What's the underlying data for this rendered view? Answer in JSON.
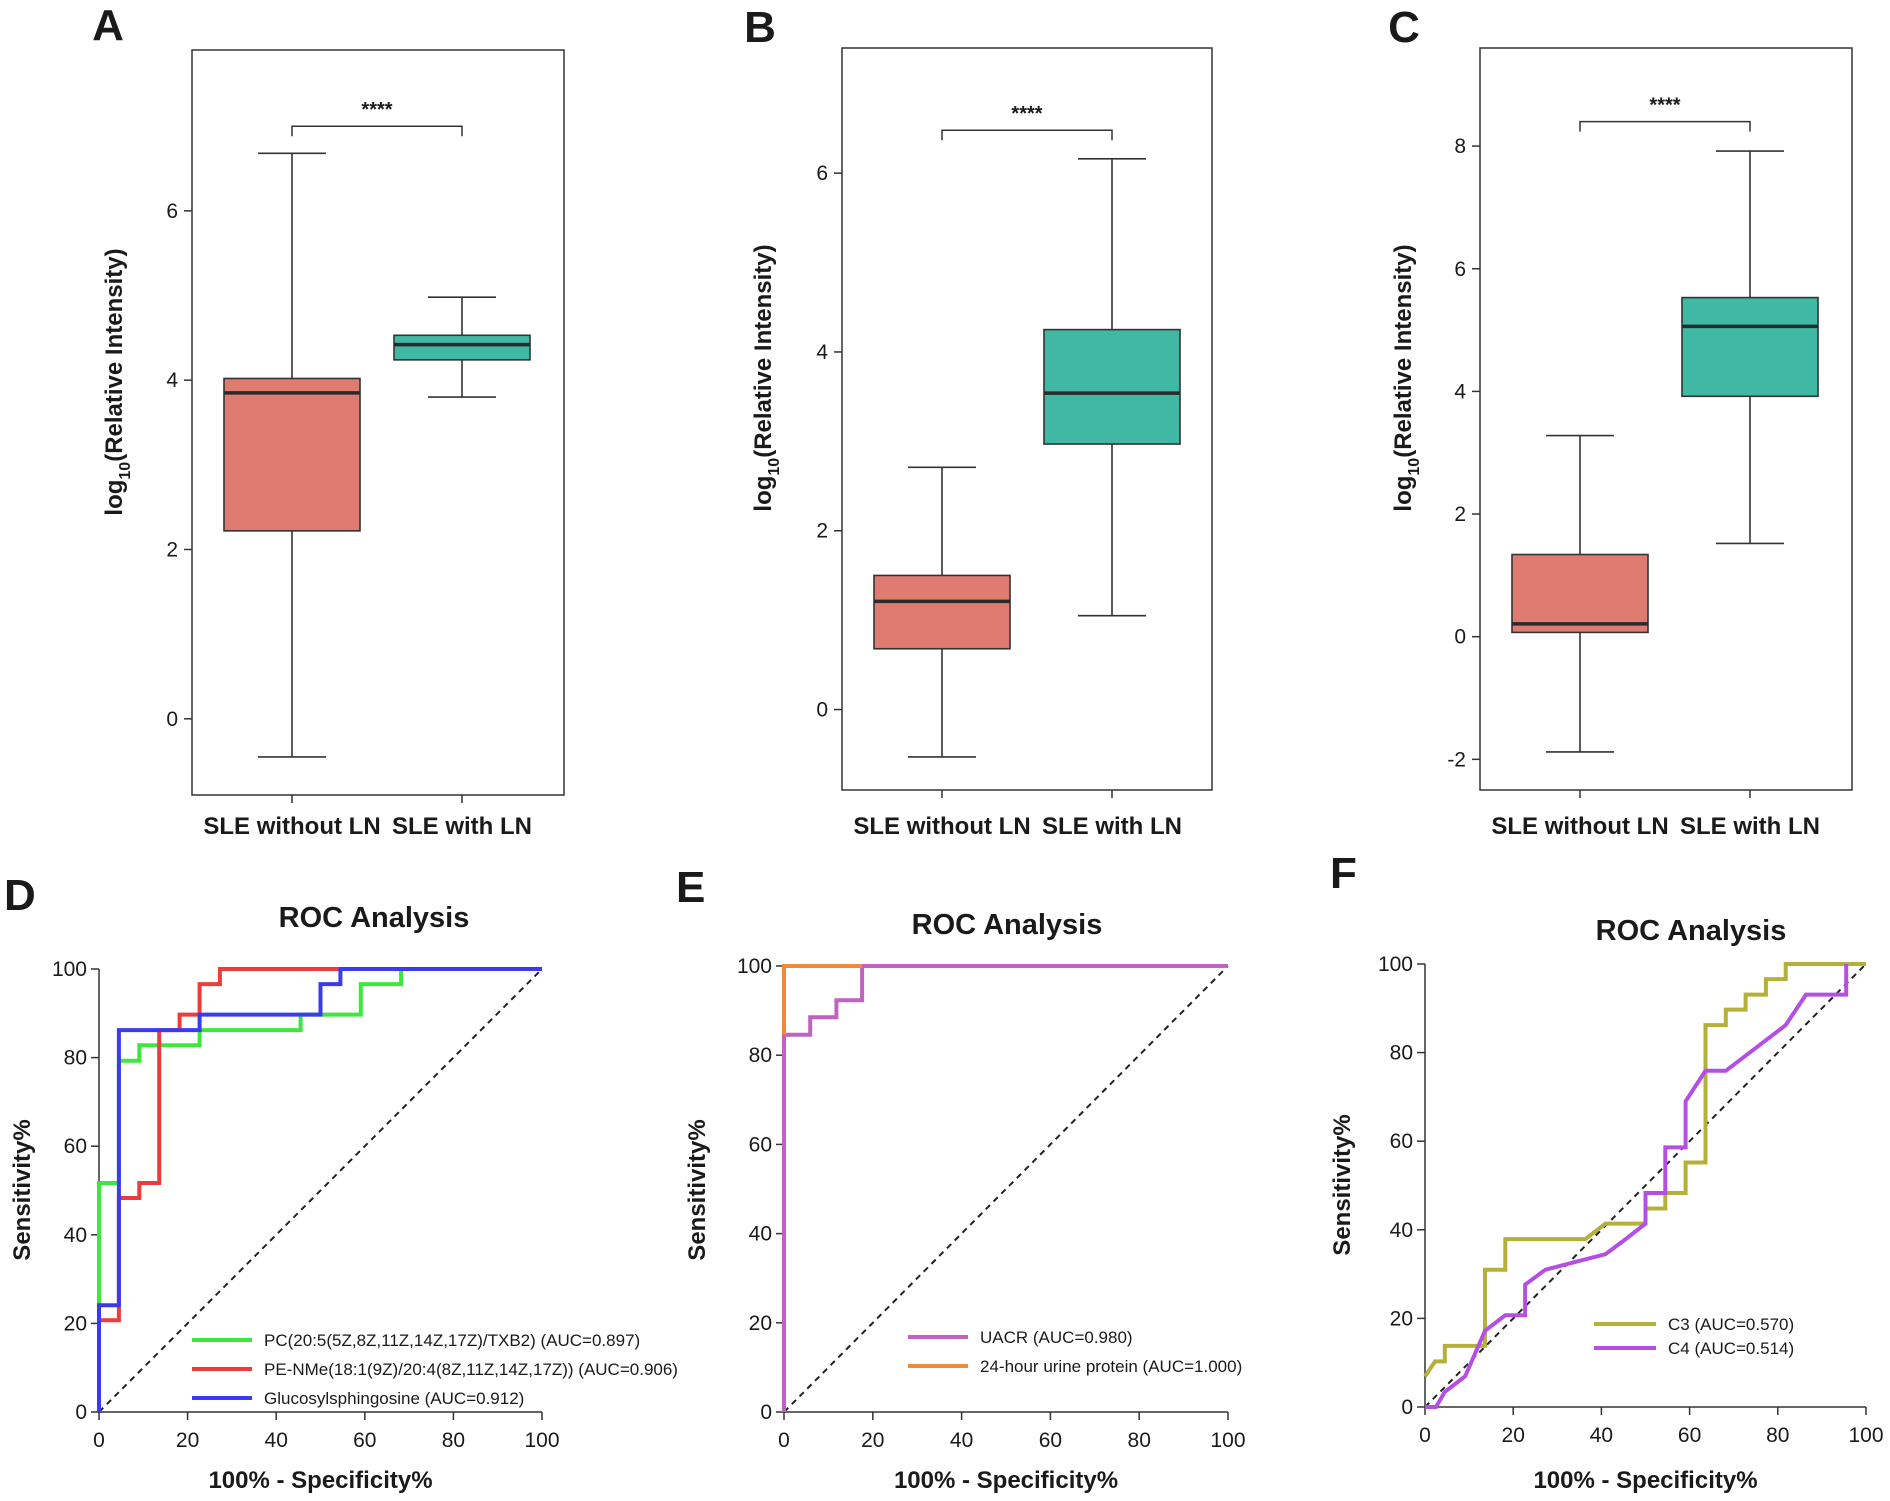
{
  "chart_data": [
    {
      "panel": "A",
      "type": "box",
      "ylabel": {
        "prefix": "log",
        "sub": "10",
        "suffix": "(Relative Intensity)"
      },
      "yticks": [
        0,
        2,
        4,
        6
      ],
      "ylim": [
        -0.9,
        7.9
      ],
      "categories": [
        "SLE without LN",
        "SLE with LN"
      ],
      "boxes": [
        {
          "name": "SLE without LN",
          "min": -0.45,
          "q1": 2.22,
          "median": 3.85,
          "q3": 4.02,
          "max": 6.68,
          "color": "#E07B72"
        },
        {
          "name": "SLE with LN",
          "min": 3.8,
          "q1": 4.24,
          "median": 4.42,
          "q3": 4.53,
          "max": 4.98,
          "color": "#3FB8A4"
        }
      ],
      "significance": {
        "label": "****",
        "y": 7.0
      }
    },
    {
      "panel": "B",
      "type": "box",
      "ylabel": {
        "prefix": "log",
        "sub": "10",
        "suffix": "(Relative Intensity)"
      },
      "yticks": [
        0,
        2,
        4,
        6
      ],
      "ylim": [
        -0.9,
        7.4
      ],
      "categories": [
        "SLE without LN",
        "SLE with LN"
      ],
      "boxes": [
        {
          "name": "SLE without LN",
          "min": -0.53,
          "q1": 0.68,
          "median": 1.21,
          "q3": 1.5,
          "max": 2.71,
          "color": "#E07B72"
        },
        {
          "name": "SLE with LN",
          "min": 1.05,
          "q1": 2.97,
          "median": 3.54,
          "q3": 4.25,
          "max": 6.16,
          "color": "#3FB8A4"
        }
      ],
      "significance": {
        "label": "****",
        "y": 6.48
      }
    },
    {
      "panel": "C",
      "type": "box",
      "ylabel": {
        "prefix": "log",
        "sub": "10",
        "suffix": "(Relative Intensity)"
      },
      "yticks": [
        -2,
        0,
        2,
        4,
        6,
        8
      ],
      "ylim": [
        -2.5,
        9.6
      ],
      "categories": [
        "SLE without LN",
        "SLE with LN"
      ],
      "boxes": [
        {
          "name": "SLE without LN",
          "min": -1.88,
          "q1": 0.07,
          "median": 0.21,
          "q3": 1.34,
          "max": 3.28,
          "color": "#E07B72"
        },
        {
          "name": "SLE with LN",
          "min": 1.52,
          "q1": 3.92,
          "median": 5.06,
          "q3": 5.53,
          "max": 7.92,
          "color": "#3FB8A4"
        }
      ],
      "significance": {
        "label": "****",
        "y": 8.4
      }
    },
    {
      "panel": "D",
      "type": "line",
      "title": "ROC Analysis",
      "xlabel": "100% - Specificity%",
      "ylabel": "Sensitivity%",
      "xlim": [
        0,
        100
      ],
      "ylim": [
        0,
        100
      ],
      "xticks": [
        0,
        20,
        40,
        60,
        80,
        100
      ],
      "yticks": [
        0,
        20,
        40,
        60,
        80,
        100
      ],
      "reference_line": true,
      "series": [
        {
          "name": "PC(20:5(5Z,8Z,11Z,14Z,17Z)/TXB2) (AUC=0.897)",
          "color": "#3BE83B",
          "points": [
            [
              0,
              0
            ],
            [
              0,
              51.7
            ],
            [
              4.5,
              51.7
            ],
            [
              4.5,
              79.3
            ],
            [
              9.1,
              79.3
            ],
            [
              9.1,
              82.8
            ],
            [
              22.7,
              82.8
            ],
            [
              22.7,
              86.2
            ],
            [
              45.5,
              86.2
            ],
            [
              45.5,
              89.7
            ],
            [
              59.1,
              89.7
            ],
            [
              59.1,
              96.6
            ],
            [
              68.2,
              96.6
            ],
            [
              68.2,
              100
            ],
            [
              100,
              100
            ]
          ]
        },
        {
          "name": "PE-NMe(18:1(9Z)/20:4(8Z,11Z,14Z,17Z)) (AUC=0.906)",
          "color": "#EE3B3B",
          "points": [
            [
              0,
              0
            ],
            [
              0,
              20.7
            ],
            [
              4.5,
              20.7
            ],
            [
              4.5,
              48.3
            ],
            [
              9.1,
              48.3
            ],
            [
              9.1,
              51.7
            ],
            [
              13.6,
              51.7
            ],
            [
              13.6,
              86.2
            ],
            [
              18.2,
              86.2
            ],
            [
              18.2,
              89.7
            ],
            [
              22.7,
              89.7
            ],
            [
              22.7,
              96.6
            ],
            [
              27.3,
              96.6
            ],
            [
              27.3,
              100
            ],
            [
              100,
              100
            ]
          ]
        },
        {
          "name": "Glucosylsphingosine (AUC=0.912)",
          "color": "#3B3BEE",
          "points": [
            [
              0,
              0
            ],
            [
              0,
              24.1
            ],
            [
              4.5,
              24.1
            ],
            [
              4.5,
              86.2
            ],
            [
              13.6,
              86.2
            ],
            [
              22.7,
              86.2
            ],
            [
              22.7,
              89.7
            ],
            [
              50,
              89.7
            ],
            [
              50,
              96.6
            ],
            [
              54.5,
              96.6
            ],
            [
              54.5,
              100
            ],
            [
              100,
              100
            ]
          ]
        }
      ]
    },
    {
      "panel": "E",
      "type": "line",
      "title": "ROC Analysis",
      "xlabel": "100% - Specificity%",
      "ylabel": "Sensitivity%",
      "xlim": [
        0,
        100
      ],
      "ylim": [
        0,
        100
      ],
      "xticks": [
        0,
        20,
        40,
        60,
        80,
        100
      ],
      "yticks": [
        0,
        20,
        40,
        60,
        80,
        100
      ],
      "reference_line": true,
      "series": [
        {
          "name": "UACR (AUC=0.980)",
          "color": "#C062C0",
          "points": [
            [
              0,
              0
            ],
            [
              0,
              84.6
            ],
            [
              5.9,
              84.6
            ],
            [
              5.9,
              88.5
            ],
            [
              11.8,
              88.5
            ],
            [
              11.8,
              92.3
            ],
            [
              17.6,
              92.3
            ],
            [
              17.6,
              100
            ],
            [
              100,
              100
            ]
          ]
        },
        {
          "name": "24-hour urine protein (AUC=1.000)",
          "color": "#F08A3A",
          "points": [
            [
              0,
              84.6
            ],
            [
              0,
              100
            ],
            [
              17.6,
              100
            ]
          ]
        }
      ]
    },
    {
      "panel": "F",
      "type": "line",
      "title": "ROC Analysis",
      "xlabel": "100% - Specificity%",
      "ylabel": "Sensitivity%",
      "xlim": [
        0,
        100
      ],
      "ylim": [
        0,
        100
      ],
      "xticks": [
        0,
        20,
        40,
        60,
        80,
        100
      ],
      "yticks": [
        0,
        20,
        40,
        60,
        80,
        100
      ],
      "reference_line": true,
      "series": [
        {
          "name": "C3 (AUC=0.570)",
          "color": "#B5B03A",
          "points": [
            [
              0,
              6.9
            ],
            [
              2.3,
              10.3
            ],
            [
              4.5,
              10.3
            ],
            [
              4.5,
              13.8
            ],
            [
              13.6,
              13.8
            ],
            [
              13.6,
              31
            ],
            [
              18.2,
              31
            ],
            [
              18.2,
              37.9
            ],
            [
              36.4,
              37.9
            ],
            [
              40.9,
              41.4
            ],
            [
              50,
              41.4
            ],
            [
              50,
              44.8
            ],
            [
              54.5,
              44.8
            ],
            [
              54.5,
              48.3
            ],
            [
              59.1,
              48.3
            ],
            [
              59.1,
              55.2
            ],
            [
              63.6,
              55.2
            ],
            [
              63.6,
              86.2
            ],
            [
              68.2,
              86.2
            ],
            [
              68.2,
              89.7
            ],
            [
              72.7,
              89.7
            ],
            [
              72.7,
              93.1
            ],
            [
              77.3,
              93.1
            ],
            [
              77.3,
              96.6
            ],
            [
              81.8,
              96.6
            ],
            [
              81.8,
              100
            ],
            [
              100,
              100
            ]
          ]
        },
        {
          "name": "C4 (AUC=0.514)",
          "color": "#B44FE6",
          "points": [
            [
              0,
              0
            ],
            [
              2.5,
              0
            ],
            [
              4.5,
              3.4
            ],
            [
              9.1,
              6.9
            ],
            [
              13.6,
              17.2
            ],
            [
              18.2,
              20.7
            ],
            [
              22.7,
              20.7
            ],
            [
              22.7,
              27.6
            ],
            [
              27.3,
              31
            ],
            [
              40.9,
              34.5
            ],
            [
              45.5,
              37.9
            ],
            [
              50,
              41.4
            ],
            [
              50,
              48.3
            ],
            [
              54.5,
              48.3
            ],
            [
              54.5,
              58.6
            ],
            [
              59.1,
              58.6
            ],
            [
              59.1,
              69
            ],
            [
              63.6,
              75.9
            ],
            [
              68.2,
              75.9
            ],
            [
              81.8,
              86.2
            ],
            [
              86.4,
              93.1
            ],
            [
              95.5,
              93.1
            ],
            [
              95.5,
              100
            ]
          ]
        }
      ]
    }
  ]
}
